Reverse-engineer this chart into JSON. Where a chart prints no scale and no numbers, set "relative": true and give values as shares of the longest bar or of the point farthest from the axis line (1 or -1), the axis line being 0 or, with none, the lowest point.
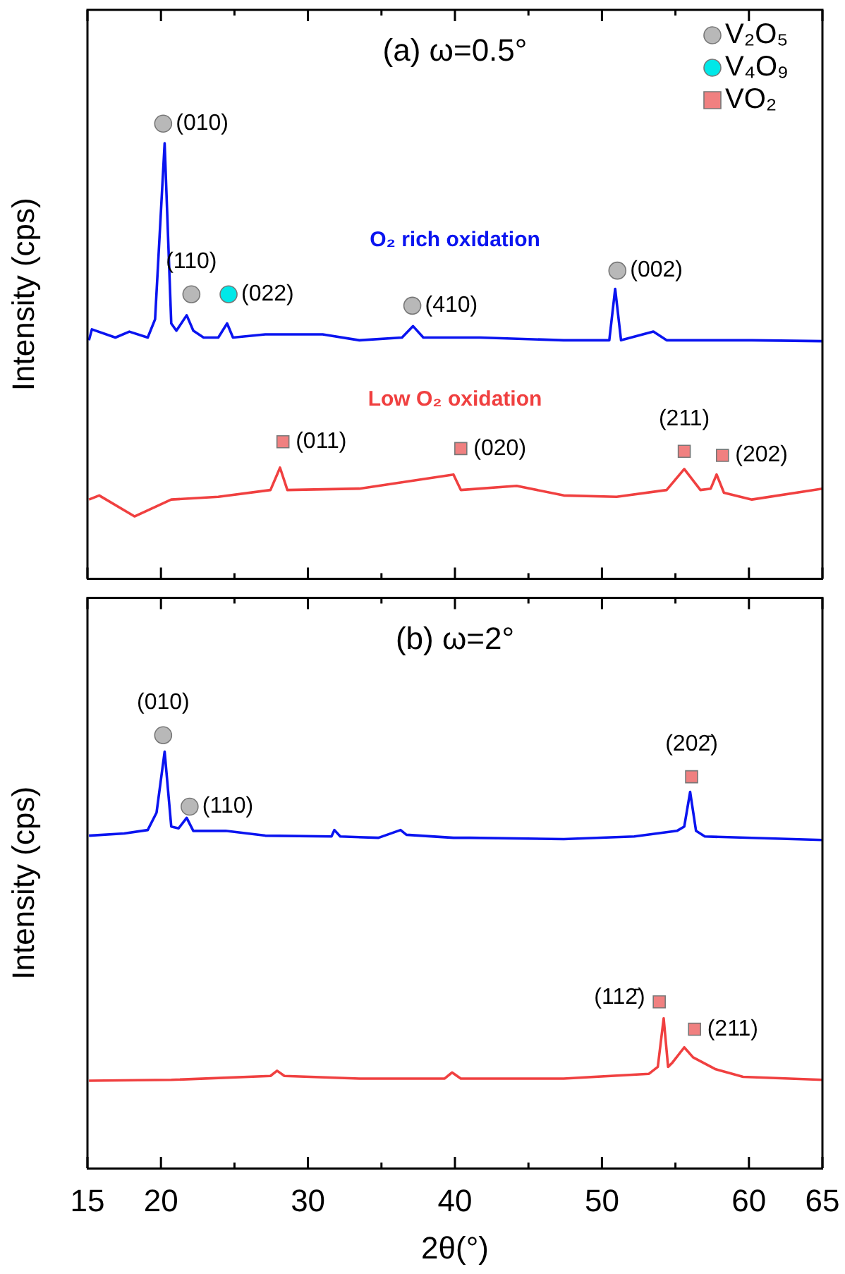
{
  "chart_data": [
    {
      "type": "line",
      "title": "(a) ω=0.5°",
      "ylabel": "Intensity (cps)",
      "xlim": [
        15,
        65
      ],
      "xticks": [
        15,
        20,
        {
          "value": 25,
          "label": null
        },
        30,
        {
          "value": 35,
          "label": null
        },
        40,
        {
          "value": 45,
          "label": null
        },
        50,
        {
          "value": 55,
          "label": null
        },
        60,
        65
      ],
      "relative": true,
      "tick_labels": false,
      "legend": "top right",
      "series": [
        {
          "name": "O₂ rich oxidation",
          "color": "#0a14f0",
          "type": "line",
          "x": [
            15.1,
            15.3,
            16.9,
            17.85,
            19.1,
            19.6,
            20.25,
            20.7,
            21.05,
            21.75,
            22.2,
            22.9,
            23.9,
            24.5,
            24.9,
            27.1,
            31.0,
            33.5,
            36.4,
            37.15,
            37.85,
            41.7,
            47.4,
            50.5,
            50.9,
            51.3,
            53.5,
            54.4,
            60.2,
            65.0
          ],
          "values": [
            0.524,
            0.548,
            0.53,
            0.543,
            0.53,
            0.57,
            0.957,
            0.561,
            0.545,
            0.579,
            0.545,
            0.53,
            0.53,
            0.561,
            0.53,
            0.537,
            0.537,
            0.524,
            0.53,
            0.555,
            0.53,
            0.53,
            0.524,
            0.524,
            0.637,
            0.524,
            0.543,
            0.524,
            0.524,
            0.522
          ]
        },
        {
          "name": "Low O₂ oxidation",
          "color": "#f04040",
          "type": "line",
          "x": [
            15.1,
            15.8,
            18.2,
            20.7,
            23.9,
            27.45,
            28.1,
            28.6,
            33.5,
            39.9,
            40.4,
            44.2,
            47.4,
            51.0,
            54.4,
            55.6,
            56.7,
            57.4,
            57.8,
            58.3,
            60.2,
            65.0
          ],
          "values": [
            0.174,
            0.183,
            0.137,
            0.174,
            0.18,
            0.195,
            0.244,
            0.195,
            0.198,
            0.229,
            0.195,
            0.204,
            0.183,
            0.18,
            0.195,
            0.241,
            0.195,
            0.198,
            0.229,
            0.189,
            0.174,
            0.198
          ]
        },
        {
          "name": "V₂O₅",
          "color": "#b8b8b8",
          "type": "scatter",
          "marker": "circle",
          "x": [
            20.15,
            22.07,
            37.1,
            51.05
          ],
          "values": [
            1.0,
            0.625,
            0.6,
            0.677
          ]
        },
        {
          "name": "V₄O₉",
          "color": "#00e8e8",
          "type": "scatter",
          "marker": "circle",
          "x": [
            24.6
          ],
          "values": [
            0.625
          ]
        },
        {
          "name": "VO₂",
          "color": "#f08080",
          "type": "scatter",
          "marker": "square",
          "x": [
            28.3,
            40.4,
            55.6,
            58.2
          ],
          "values": [
            0.301,
            0.286,
            0.28,
            0.271
          ]
        }
      ],
      "annotations": [
        "(010)",
        "(110)",
        "(022)",
        "(410)",
        "(002)",
        "(011)",
        "(020)",
        "(211)",
        "(202)"
      ]
    },
    {
      "type": "line",
      "title": "(b) ω=2°",
      "ylabel": "Intensity (cps)",
      "xlabel": "2θ(°)",
      "xlim": [
        15,
        65
      ],
      "xticks": [
        15,
        20,
        {
          "value": 25,
          "label": null
        },
        30,
        {
          "value": 35,
          "label": null
        },
        40,
        {
          "value": 45,
          "label": null
        },
        50,
        {
          "value": 55,
          "label": null
        },
        60,
        65
      ],
      "relative": true,
      "tick_labels": "x",
      "series": [
        {
          "color": "#0a14f0",
          "type": "line",
          "x": [
            15.1,
            17.5,
            19.1,
            19.7,
            20.25,
            20.7,
            21.2,
            21.75,
            22.2,
            24.4,
            27.1,
            31.6,
            31.8,
            32.2,
            34.8,
            36.3,
            36.7,
            39.9,
            41.0,
            47.4,
            52.2,
            55.1,
            55.6,
            56.0,
            56.4,
            57.0,
            65.0
          ],
          "values": [
            0.768,
            0.773,
            0.781,
            0.821,
            0.962,
            0.789,
            0.785,
            0.809,
            0.779,
            0.779,
            0.768,
            0.766,
            0.781,
            0.766,
            0.763,
            0.781,
            0.77,
            0.763,
            0.763,
            0.76,
            0.766,
            0.779,
            0.789,
            0.869,
            0.779,
            0.766,
            0.758
          ]
        },
        {
          "color": "#f04040",
          "type": "line",
          "x": [
            15.1,
            20.7,
            27.45,
            27.9,
            28.4,
            33.5,
            39.3,
            39.8,
            40.4,
            47.4,
            53.2,
            53.8,
            54.2,
            54.5,
            54.8,
            55.6,
            56.2,
            57.7,
            59.6,
            65.0
          ],
          "values": [
            0.202,
            0.204,
            0.213,
            0.225,
            0.213,
            0.207,
            0.207,
            0.221,
            0.207,
            0.207,
            0.218,
            0.234,
            0.346,
            0.234,
            0.244,
            0.279,
            0.256,
            0.229,
            0.211,
            0.204
          ]
        },
        {
          "color": "#b8b8b8",
          "type": "scatter",
          "marker": "circle",
          "x": [
            20.15,
            21.95
          ],
          "values": [
            1.0,
            0.835
          ]
        },
        {
          "color": "#f08080",
          "type": "scatter",
          "marker": "square",
          "x": [
            56.1,
            53.9,
            56.3
          ],
          "values": [
            0.904,
            0.384,
            0.321
          ]
        }
      ],
      "annotations": [
        "(010)",
        "(110)",
        "(202̄)",
        "(112̄)",
        "(211)"
      ]
    }
  ]
}
